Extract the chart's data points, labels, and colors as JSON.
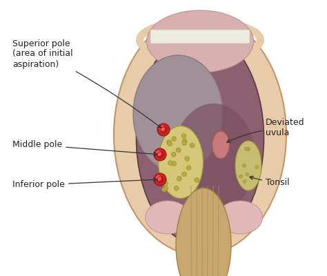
{
  "bg_color": "#ffffff",
  "labels": {
    "superior_pole": "Superior pole\n(area of initial\naspiration)",
    "middle_pole": "Middle pole",
    "inferior_pole": "Inferior pole",
    "deviated_uvula": "Deviated\nuvula",
    "tonsil": "Tonsil"
  },
  "colors": {
    "skin_outer": "#e8cba8",
    "skin_border": "#c4956a",
    "mouth_inner": "#8c6070",
    "throat_pink_upper": "#dba8a8",
    "throat_dark": "#7a5060",
    "abscess_gray": "#a09098",
    "abscess_border": "#887880",
    "tonsil_left_fill": "#d4c878",
    "tonsil_left_border": "#a09838",
    "tonsil_right_fill": "#c8bc70",
    "tonsil_right_border": "#a09838",
    "uvula_pink": "#c87878",
    "uvula_border": "#a05858",
    "tongue_fill": "#c8a870",
    "tongue_border": "#a08040",
    "tongue_line": "#b09050",
    "palate_pink": "#e0b8b8",
    "palate_upper_fill": "#d8b0b0",
    "teeth_white": "#eeebe0",
    "teeth_border": "#ccc8b0",
    "dot_red_outer": "#cc2222",
    "dot_red_inner": "#ff5555",
    "dot_border": "#991111",
    "text_color": "#222222",
    "arrow_color": "#333333",
    "tonsil_dot": "#b8a840",
    "throat_lower": "#6a4858"
  },
  "figsize": [
    4.74,
    4.0
  ],
  "dpi": 100
}
